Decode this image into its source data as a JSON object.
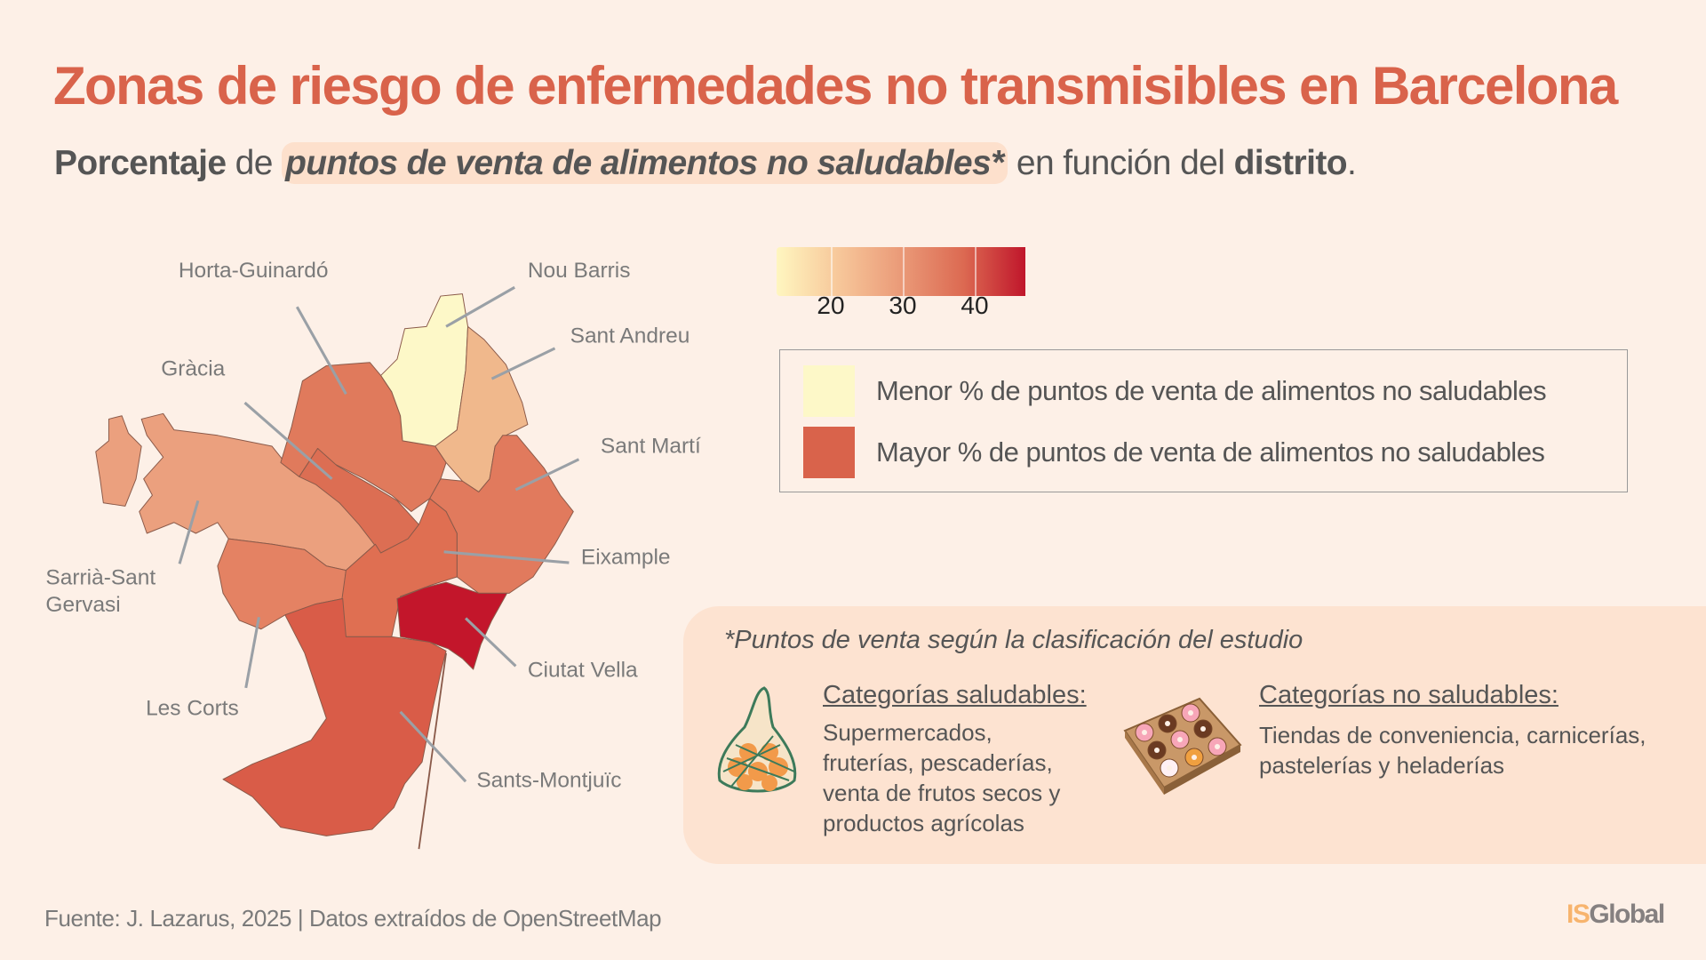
{
  "title": "Zonas de riesgo de enfermedades no transmisibles en Barcelona",
  "subtitle": {
    "part1": "Porcentaje",
    "part2": " de ",
    "part3": "puntos de venta de alimentos no saludables*",
    "part4": " en función del ",
    "part5": "distrito",
    "part6": "."
  },
  "colors": {
    "title": "#d9634b",
    "low": "#fdf8c8",
    "high": "#d9634b",
    "max": "#c0162b"
  },
  "map": {
    "districts": [
      {
        "name": "Nou Barris",
        "color": "#fdf8c8"
      },
      {
        "name": "Sant Andreu",
        "color": "#f0b88c"
      },
      {
        "name": "Horta-Guinardó",
        "color": "#e07a5c"
      },
      {
        "name": "Gràcia",
        "color": "#dc6e53"
      },
      {
        "name": "Sarrià-Sant Gervasi",
        "label_lines": [
          "Sarrià-Sant",
          "Gervasi"
        ],
        "color": "#eba07e"
      },
      {
        "name": "Les Corts",
        "color": "#e48263"
      },
      {
        "name": "Eixample",
        "color": "#df6f52"
      },
      {
        "name": "Sant Martí",
        "color": "#e17a5d"
      },
      {
        "name": "Ciutat Vella",
        "color": "#c3162b"
      },
      {
        "name": "Sants-Montjuïc",
        "color": "#d95c48"
      }
    ]
  },
  "colorbar": {
    "ticks": [
      "20",
      "30",
      "40"
    ]
  },
  "legend": {
    "items": [
      {
        "label": "Menor % de puntos de venta de alimentos no saludables",
        "color": "#fdf8c8"
      },
      {
        "label": "Mayor % de puntos de venta de alimentos no saludables",
        "color": "#d9634b"
      }
    ]
  },
  "card": {
    "note": "*Puntos de venta según la clasificación del estudio",
    "healthy": {
      "heading": "Categorías saludables:",
      "lines": [
        "Supermercados,",
        "fruterías, pescaderías,",
        "venta de frutos secos y",
        "productos agrícolas"
      ],
      "icon": "mesh-bag-oranges-icon"
    },
    "unhealthy": {
      "heading": "Categorías no saludables:",
      "lines": [
        "Tiendas de conveniencia, carnicerías,",
        "pastelerías y heladerías"
      ],
      "icon": "donut-box-icon"
    }
  },
  "footer": {
    "source": "Fuente: J. Lazarus, 2025  |  Datos extraídos de OpenStreetMap",
    "logo_is": "IS",
    "logo_global": "Global"
  }
}
